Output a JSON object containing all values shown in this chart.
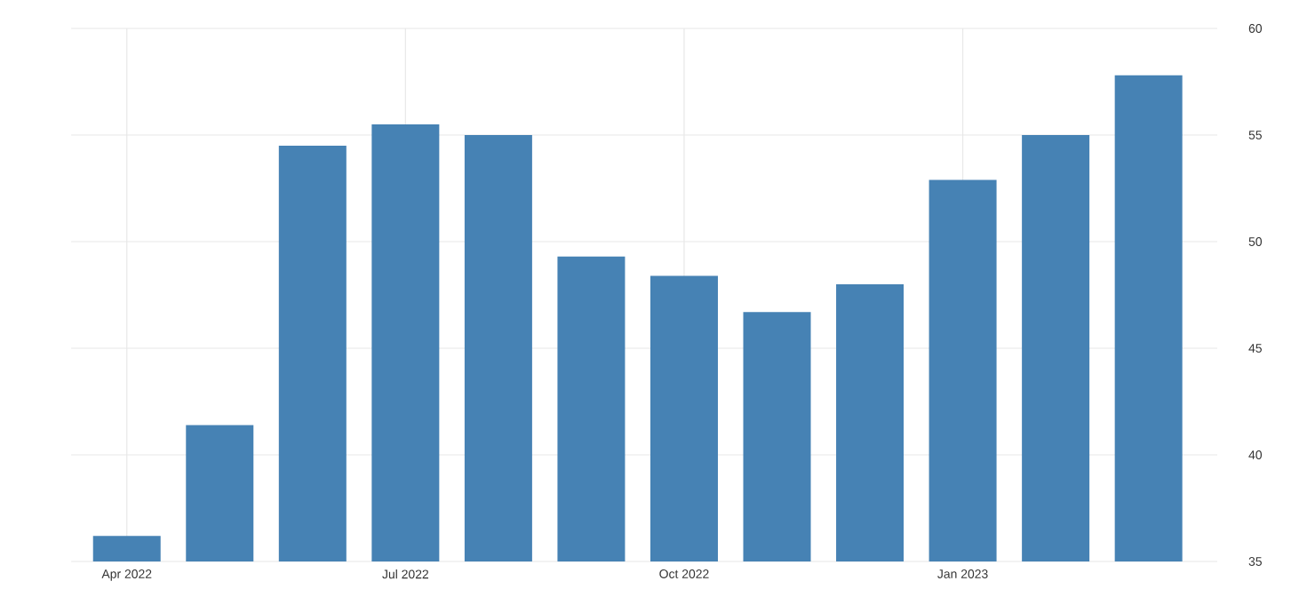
{
  "chart_data": {
    "type": "bar",
    "categories": [
      "Apr 2022",
      null,
      null,
      "Jul 2022",
      null,
      null,
      "Oct 2022",
      null,
      null,
      "Jan 2023",
      null,
      null
    ],
    "values": [
      36.2,
      41.4,
      54.5,
      55.5,
      55.0,
      49.3,
      48.4,
      46.7,
      48.0,
      52.9,
      55.0,
      57.8
    ],
    "color": "#4682b4",
    "ylim": [
      35,
      60
    ],
    "yticks": [
      35,
      40,
      45,
      50,
      55,
      60
    ],
    "grid": true
  }
}
